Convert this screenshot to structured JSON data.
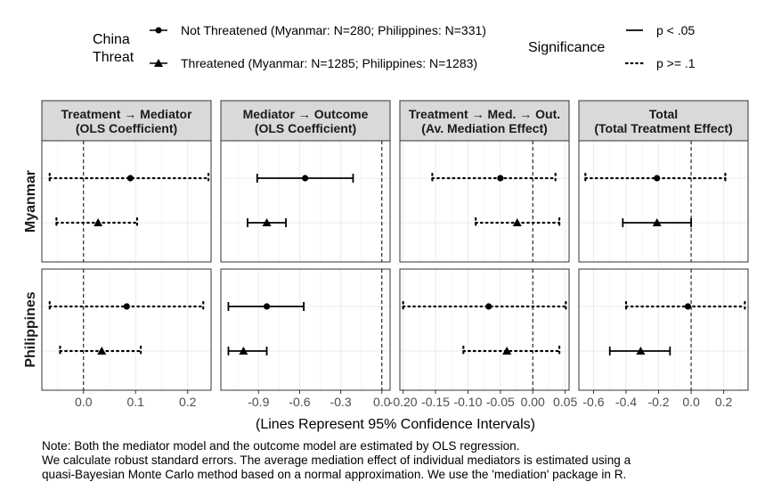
{
  "chart_data": {
    "type": "scatter",
    "xlabel": "(Lines Represent 95% Confidence Intervals)",
    "legend_placement": "top",
    "grid": true,
    "legend": {
      "group_title": [
        "China",
        "Threat"
      ],
      "groups": [
        {
          "key": "not_threatened",
          "label": "Not Threatened (Myanmar: N=280; Philippines: N=331)",
          "marker": "circle"
        },
        {
          "key": "threatened",
          "label": "Threatened (Myanmar: N=1285; Philippines: N=1283)",
          "marker": "triangle"
        }
      ],
      "significance_title": "Significance",
      "significance": [
        {
          "label": "p < .05",
          "line": "solid"
        },
        {
          "label": "p >= .1",
          "line": "dotted"
        }
      ]
    },
    "facets": [
      {
        "title": [
          "Treatment → Mediator",
          "(OLS Coefficient)"
        ],
        "xlim": [
          -0.08,
          0.245
        ],
        "ticks": [
          0.0,
          0.1,
          0.2
        ],
        "tick_labels": [
          "0.0",
          "0.1",
          "0.2"
        ],
        "minor_ticks": [
          -0.05,
          0.05,
          0.15
        ]
      },
      {
        "title": [
          "Mediator → Outcome",
          "(OLS Coefficient)"
        ],
        "xlim": [
          -1.175,
          0.06
        ],
        "ticks": [
          -0.9,
          -0.6,
          -0.3,
          0.0
        ],
        "tick_labels": [
          "-0.9",
          "-0.6",
          "-0.3",
          "0.0"
        ],
        "minor_ticks": [
          -1.05,
          -0.75,
          -0.45,
          -0.15
        ]
      },
      {
        "title": [
          "Treatment → Med. → Out.",
          "(Av. Mediation Effect)"
        ],
        "xlim": [
          -0.205,
          0.056
        ],
        "ticks": [
          -0.2,
          -0.15,
          -0.1,
          -0.05,
          0.0,
          0.05
        ],
        "tick_labels": [
          "-0.20",
          "-0.15",
          "-0.10",
          "-0.05",
          "0.00",
          "0.05"
        ],
        "minor_ticks": [
          -0.175,
          -0.125,
          -0.075,
          -0.025,
          0.025
        ]
      },
      {
        "title": [
          "Total",
          "(Total Treatment Effect)"
        ],
        "xlim": [
          -0.69,
          0.35
        ],
        "ticks": [
          -0.6,
          -0.4,
          -0.2,
          0.0,
          0.2
        ],
        "tick_labels": [
          "-0.6",
          "-0.4",
          "-0.2",
          "0.0",
          "0.2"
        ],
        "minor_ticks": [
          -0.5,
          -0.3,
          -0.1,
          0.1,
          0.3
        ]
      }
    ],
    "rows": [
      {
        "label": "Myanmar",
        "points": [
          [
            {
              "group": "not_threatened",
              "est": 0.09,
              "lo": -0.065,
              "hi": 0.24,
              "sig": "dotted"
            },
            {
              "group": "threatened",
              "est": 0.028,
              "lo": -0.052,
              "hi": 0.103,
              "sig": "dotted"
            }
          ],
          [
            {
              "group": "not_threatened",
              "est": -0.56,
              "lo": -0.91,
              "hi": -0.21,
              "sig": "solid"
            },
            {
              "group": "threatened",
              "est": -0.84,
              "lo": -0.98,
              "hi": -0.7,
              "sig": "solid"
            }
          ],
          [
            {
              "group": "not_threatened",
              "est": -0.05,
              "lo": -0.155,
              "hi": 0.035,
              "sig": "dotted"
            },
            {
              "group": "threatened",
              "est": -0.024,
              "lo": -0.088,
              "hi": 0.041,
              "sig": "dotted"
            }
          ],
          [
            {
              "group": "not_threatened",
              "est": -0.21,
              "lo": -0.65,
              "hi": 0.21,
              "sig": "dotted"
            },
            {
              "group": "threatened",
              "est": -0.21,
              "lo": -0.42,
              "hi": 0.0,
              "sig": "solid"
            }
          ]
        ]
      },
      {
        "label": "Philippines",
        "points": [
          [
            {
              "group": "not_threatened",
              "est": 0.083,
              "lo": -0.065,
              "hi": 0.23,
              "sig": "dotted"
            },
            {
              "group": "threatened",
              "est": 0.035,
              "lo": -0.045,
              "hi": 0.11,
              "sig": "dotted"
            }
          ],
          [
            {
              "group": "not_threatened",
              "est": -0.84,
              "lo": -1.12,
              "hi": -0.57,
              "sig": "solid"
            },
            {
              "group": "threatened",
              "est": -1.01,
              "lo": -1.12,
              "hi": -0.84,
              "sig": "solid"
            }
          ],
          [
            {
              "group": "not_threatened",
              "est": -0.068,
              "lo": -0.2,
              "hi": 0.051,
              "sig": "dotted"
            },
            {
              "group": "threatened",
              "est": -0.04,
              "lo": -0.107,
              "hi": 0.041,
              "sig": "dotted"
            }
          ],
          [
            {
              "group": "not_threatened",
              "est": -0.02,
              "lo": -0.4,
              "hi": 0.33,
              "sig": "dotted"
            },
            {
              "group": "threatened",
              "est": -0.31,
              "lo": -0.5,
              "hi": -0.13,
              "sig": "solid"
            }
          ]
        ]
      }
    ]
  },
  "note": {
    "lines": [
      "Note: Both the mediator model and the outcome model are estimated by OLS regression.",
      "We calculate robust standard errors. The average mediation effect of individual mediators is estimated using a",
      "quasi-Bayesian Monte Carlo method based on a normal approximation. We use the 'mediation' package in R."
    ]
  }
}
